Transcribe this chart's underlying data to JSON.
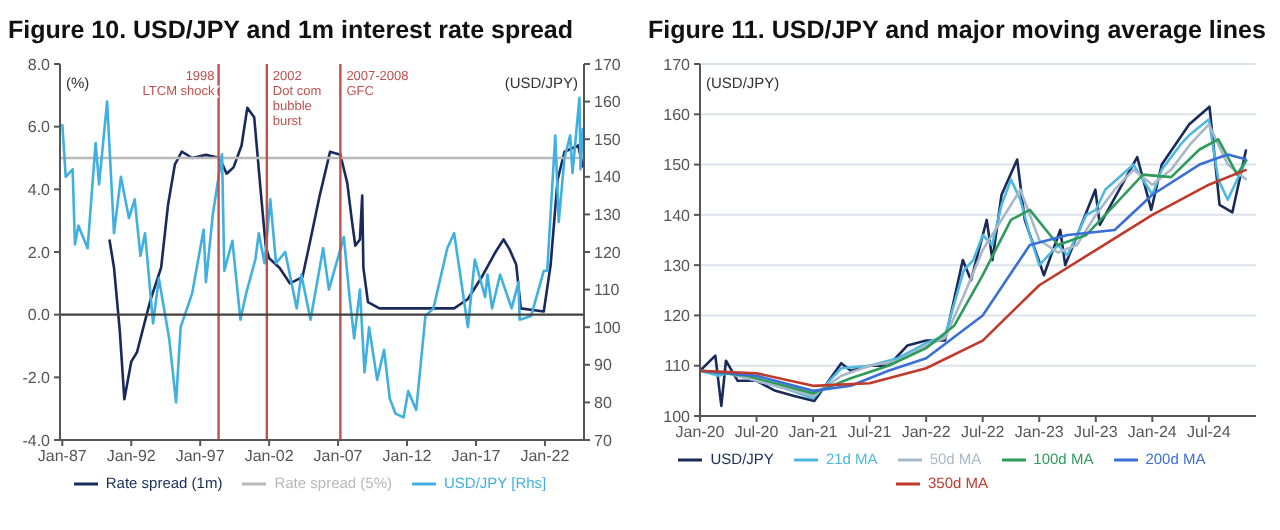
{
  "chart_data": [
    {
      "type": "line",
      "title": "Figure 10. USD/JPY and 1m interest rate spread",
      "ylabel": "(%)",
      "y2label": "(USD/JPY)",
      "xlim": [
        "1986-11",
        "2024-11"
      ],
      "xticks": [
        {
          "value": "1987-01",
          "label": "Jan-87"
        },
        {
          "value": "1992-01",
          "label": "Jan-92"
        },
        {
          "value": "1997-01",
          "label": "Jan-97"
        },
        {
          "value": "2002-01",
          "label": "Jan-02"
        },
        {
          "value": "2007-01",
          "label": "Jan-07"
        },
        {
          "value": "2012-01",
          "label": "Jan-12"
        },
        {
          "value": "2017-01",
          "label": "Jan-17"
        },
        {
          "value": "2022-01",
          "label": "Jan-22"
        }
      ],
      "ylim": [
        -4,
        8
      ],
      "yticks": [
        {
          "value": -4,
          "label": "-4.0"
        },
        {
          "value": -2,
          "label": "-2.0"
        },
        {
          "value": 0,
          "label": "0.0"
        },
        {
          "value": 2,
          "label": "2.0"
        },
        {
          "value": 4,
          "label": "4.0"
        },
        {
          "value": 6,
          "label": "6.0"
        },
        {
          "value": 8,
          "label": "8.0"
        }
      ],
      "y2lim": [
        70,
        170
      ],
      "y2ticks": [
        70,
        80,
        90,
        100,
        110,
        120,
        130,
        140,
        150,
        160,
        170
      ],
      "legend": "bottom",
      "ref_lines": [
        {
          "axis": "x",
          "value": "1998-05",
          "label": "1998 LTCM shock",
          "color": "#c0504d"
        },
        {
          "axis": "x",
          "value": "2001-11",
          "label": "2002 Dot com bubble burst",
          "color": "#c0504d"
        },
        {
          "axis": "x",
          "value": "2007-03",
          "label": "2007-2008 GFC",
          "color": "#c0504d"
        },
        {
          "axis": "y",
          "value": 0,
          "color": "#404040"
        }
      ],
      "series": [
        {
          "name": "Rate spread (1m)",
          "color": "#1a2a5a",
          "x": [
            "1990-06",
            "1990-10",
            "1991-03",
            "1991-07",
            "1992-01",
            "1992-06",
            "1993-01",
            "1993-06",
            "1994-03",
            "1994-09",
            "1995-03",
            "1995-09",
            "1996-06",
            "1997-06",
            "1998-06",
            "1998-12",
            "1999-06",
            "2000-01",
            "2000-06",
            "2000-12",
            "2001-06",
            "2001-10",
            "2002-01",
            "2002-10",
            "2003-07",
            "2004-06",
            "2005-01",
            "2005-09",
            "2006-06",
            "2007-03",
            "2007-09",
            "2008-01",
            "2008-04",
            "2008-08",
            "2008-10",
            "2008-11",
            "2009-03",
            "2010-01",
            "2015-06",
            "2016-06",
            "2017-06",
            "2018-06",
            "2019-01",
            "2019-06",
            "2019-12",
            "2020-04",
            "2021-12",
            "2022-06",
            "2022-12",
            "2023-06",
            "2024-06",
            "2024-10"
          ],
          "values": [
            2.4,
            1.5,
            -0.5,
            -2.7,
            -1.5,
            -1.2,
            -0.2,
            0.5,
            1.5,
            3.5,
            4.8,
            5.2,
            5.0,
            5.1,
            5.0,
            4.5,
            4.7,
            5.4,
            6.6,
            6.3,
            3.8,
            2.2,
            1.8,
            1.5,
            1.0,
            1.2,
            2.4,
            3.8,
            5.2,
            5.1,
            4.2,
            3.0,
            2.2,
            2.4,
            3.8,
            1.5,
            0.4,
            0.2,
            0.2,
            0.5,
            1.2,
            2.0,
            2.4,
            2.1,
            1.6,
            0.2,
            0.1,
            1.6,
            4.3,
            5.2,
            5.4,
            4.7
          ]
        },
        {
          "name": "Rate spread (5%)",
          "color": "#b8b8b8",
          "x": [
            "1986-11",
            "2024-11"
          ],
          "values": [
            5,
            5
          ]
        },
        {
          "name": "USD/JPY [Rhs]",
          "color": "#3fb0e0",
          "axis": "y2",
          "x": [
            "1987-01",
            "1987-04",
            "1987-10",
            "1987-12",
            "1988-03",
            "1988-11",
            "1989-06",
            "1989-09",
            "1990-04",
            "1990-10",
            "1991-04",
            "1991-11",
            "1992-04",
            "1992-09",
            "1993-01",
            "1993-08",
            "1994-01",
            "1994-10",
            "1995-04",
            "1995-08",
            "1996-06",
            "1997-04",
            "1997-06",
            "1997-12",
            "1998-08",
            "1998-10",
            "1999-05",
            "1999-12",
            "2000-05",
            "2001-01",
            "2001-04",
            "2001-09",
            "2002-02",
            "2002-07",
            "2003-03",
            "2004-01",
            "2004-05",
            "2005-01",
            "2005-12",
            "2006-05",
            "2007-06",
            "2007-11",
            "2008-03",
            "2008-08",
            "2008-12",
            "2009-04",
            "2009-11",
            "2010-05",
            "2010-10",
            "2011-03",
            "2011-10",
            "2012-02",
            "2012-09",
            "2013-05",
            "2013-12",
            "2014-12",
            "2015-06",
            "2016-06",
            "2016-12",
            "2017-09",
            "2017-11",
            "2018-03",
            "2018-10",
            "2019-08",
            "2020-02",
            "2020-03",
            "2021-01",
            "2021-12",
            "2022-03",
            "2022-10",
            "2023-01",
            "2023-06",
            "2023-11",
            "2024-01",
            "2024-07",
            "2024-08",
            "2024-10"
          ],
          "values": [
            154,
            140,
            142,
            122,
            127,
            121,
            149,
            138,
            160,
            125,
            140,
            129,
            134,
            119,
            125,
            101,
            113,
            97,
            80,
            100,
            109,
            126,
            112,
            130,
            146,
            115,
            123,
            102,
            109,
            118,
            125,
            117,
            134,
            117,
            120,
            105,
            114,
            102,
            121,
            110,
            124,
            108,
            97,
            110,
            88,
            100,
            86,
            94,
            81,
            77,
            76,
            83,
            78,
            103,
            105,
            121,
            125,
            100,
            118,
            108,
            114,
            105,
            114,
            105,
            112,
            102,
            103,
            115,
            115,
            151,
            128,
            145,
            151,
            141,
            161,
            142,
            153
          ]
        }
      ]
    },
    {
      "type": "line",
      "title": "Figure 11. USD/JPY and major moving average lines",
      "ylabel": "(USD/JPY)",
      "xlim": [
        "2020-01",
        "2024-12"
      ],
      "xticks": [
        {
          "value": "2020-01",
          "label": "Jan-20"
        },
        {
          "value": "2020-07",
          "label": "Jul-20"
        },
        {
          "value": "2021-01",
          "label": "Jan-21"
        },
        {
          "value": "2021-07",
          "label": "Jul-21"
        },
        {
          "value": "2022-01",
          "label": "Jan-22"
        },
        {
          "value": "2022-07",
          "label": "Jul-22"
        },
        {
          "value": "2023-01",
          "label": "Jan-23"
        },
        {
          "value": "2023-07",
          "label": "Jul-23"
        },
        {
          "value": "2024-01",
          "label": "Jan-24"
        },
        {
          "value": "2024-07",
          "label": "Jul-24"
        }
      ],
      "ylim": [
        100,
        170
      ],
      "yticks": [
        100,
        110,
        120,
        130,
        140,
        150,
        160,
        170
      ],
      "grid": "y",
      "legend": "bottom",
      "series": [
        {
          "name": "USD/JPY",
          "color": "#1a2a5a",
          "x": [
            "2020-01-01",
            "2020-02-20",
            "2020-03-09",
            "2020-03-24",
            "2020-05-01",
            "2020-07-01",
            "2020-09-01",
            "2020-11-01",
            "2021-01-05",
            "2021-03-31",
            "2021-05-01",
            "2021-07-01",
            "2021-09-01",
            "2021-11-01",
            "2022-01-01",
            "2022-03-01",
            "2022-04-28",
            "2022-05-24",
            "2022-07-14",
            "2022-08-02",
            "2022-09-01",
            "2022-10-21",
            "2022-11-15",
            "2023-01-16",
            "2023-03-08",
            "2023-03-24",
            "2023-06-30",
            "2023-07-14",
            "2023-11-13",
            "2023-12-28",
            "2024-02-01",
            "2024-04-29",
            "2024-07-03",
            "2024-08-05",
            "2024-09-16",
            "2024-10-30"
          ],
          "values": [
            109,
            112,
            102,
            111,
            107,
            107,
            105,
            104,
            103,
            110.5,
            109,
            110,
            110,
            114,
            115,
            115,
            131,
            127,
            139,
            131,
            144,
            151,
            139,
            128,
            137,
            130,
            145,
            138,
            151.5,
            141,
            150,
            158,
            161.5,
            142,
            140.5,
            153
          ]
        },
        {
          "name": "21d MA",
          "color": "#4db8e0",
          "x": [
            "2020-01",
            "2020-03",
            "2020-04",
            "2020-07",
            "2020-10",
            "2021-01",
            "2021-04",
            "2021-07",
            "2021-10",
            "2022-01",
            "2022-03",
            "2022-05",
            "2022-06",
            "2022-07",
            "2022-08",
            "2022-09",
            "2022-10",
            "2022-11",
            "2022-12",
            "2023-01",
            "2023-03",
            "2023-04",
            "2023-06",
            "2023-07",
            "2023-08",
            "2023-11",
            "2024-01",
            "2024-02",
            "2024-04",
            "2024-05",
            "2024-07",
            "2024-08",
            "2024-09",
            "2024-11"
          ],
          "values": [
            109,
            108,
            108.5,
            107,
            105.5,
            103.5,
            109.5,
            110,
            111.5,
            114.5,
            116,
            129,
            131,
            136,
            134,
            142,
            147,
            143,
            136,
            130,
            134,
            132,
            140,
            141,
            145,
            150,
            144,
            149,
            154,
            156,
            159,
            147,
            143,
            151
          ]
        },
        {
          "name": "50d MA",
          "color": "#a8b8c8",
          "x": [
            "2020-01",
            "2020-04",
            "2020-07",
            "2020-10",
            "2021-01",
            "2021-04",
            "2021-07",
            "2021-10",
            "2022-01",
            "2022-03",
            "2022-05",
            "2022-07",
            "2022-09",
            "2022-11",
            "2023-01",
            "2023-03",
            "2023-05",
            "2023-07",
            "2023-09",
            "2023-11",
            "2024-01",
            "2024-03",
            "2024-05",
            "2024-07",
            "2024-09",
            "2024-11"
          ],
          "values": [
            109,
            108.5,
            107,
            105.5,
            104,
            108,
            110,
            111,
            114,
            115.5,
            124,
            133,
            139,
            145,
            135,
            132.5,
            134,
            140,
            145,
            149,
            146,
            149,
            154,
            158,
            150,
            147
          ]
        },
        {
          "name": "100d MA",
          "color": "#2e9b5a",
          "x": [
            "2020-01",
            "2020-06",
            "2020-10",
            "2021-01",
            "2021-05",
            "2021-09",
            "2022-01",
            "2022-04",
            "2022-07",
            "2022-10",
            "2022-12",
            "2023-03",
            "2023-06",
            "2023-09",
            "2023-12",
            "2024-03",
            "2024-06",
            "2024-08",
            "2024-10",
            "2024-11"
          ],
          "values": [
            109,
            108,
            106,
            104.5,
            107.5,
            110,
            113.5,
            118,
            128,
            139,
            141,
            134,
            136,
            142,
            148,
            147.5,
            153,
            155,
            148,
            151
          ]
        },
        {
          "name": "200d MA",
          "color": "#3a6fd8",
          "x": [
            "2020-01",
            "2020-07",
            "2021-01",
            "2021-05",
            "2021-09",
            "2022-01",
            "2022-07",
            "2022-12",
            "2023-04",
            "2023-09",
            "2024-01",
            "2024-06",
            "2024-09",
            "2024-11"
          ],
          "values": [
            109,
            108,
            105,
            106,
            109,
            111.5,
            120,
            134,
            136,
            137,
            144,
            150,
            152,
            151
          ]
        },
        {
          "name": "350d MA",
          "color": "#c0392b",
          "x": [
            "2020-01",
            "2020-07",
            "2021-01",
            "2021-07",
            "2022-01",
            "2022-07",
            "2023-01",
            "2023-07",
            "2024-01",
            "2024-07",
            "2024-11"
          ],
          "values": [
            109,
            108.5,
            106,
            106.5,
            109.5,
            115,
            126,
            133,
            140,
            146,
            149
          ]
        }
      ]
    }
  ]
}
